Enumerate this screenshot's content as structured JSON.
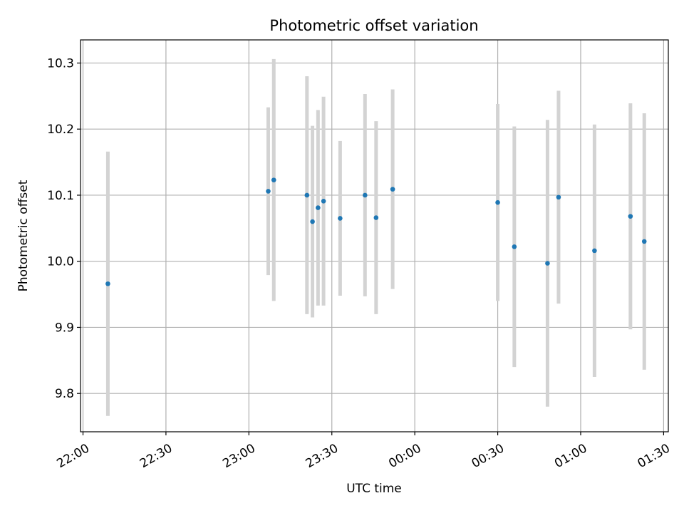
{
  "chart_data": {
    "type": "scatter",
    "title": "Photometric offset variation",
    "xlabel": "UTC time",
    "ylabel": "Photometric offset",
    "x_ticks": [
      "22:00",
      "22:30",
      "23:00",
      "23:30",
      "00:00",
      "00:30",
      "01:00",
      "01:30"
    ],
    "x_tick_values": [
      0,
      30,
      60,
      90,
      120,
      150,
      180,
      210
    ],
    "y_ticks": [
      "9.8",
      "9.9",
      "10.0",
      "10.1",
      "10.2",
      "10.3"
    ],
    "y_tick_values": [
      9.8,
      9.9,
      10.0,
      10.1,
      10.2,
      10.3
    ],
    "xlim": [
      -0.9,
      211.7
    ],
    "ylim": [
      9.742,
      10.335
    ],
    "grid": true,
    "point_color": "#1f77b4",
    "errorbar_color": "#d3d3d3",
    "points": [
      {
        "x": 9.0,
        "y": 9.966,
        "yerr": 0.2
      },
      {
        "x": 67.0,
        "y": 10.106,
        "yerr": 0.127
      },
      {
        "x": 69.0,
        "y": 10.123,
        "yerr": 0.183
      },
      {
        "x": 81.0,
        "y": 10.1,
        "yerr": 0.18
      },
      {
        "x": 83.0,
        "y": 10.06,
        "yerr": 0.145
      },
      {
        "x": 85.0,
        "y": 10.081,
        "yerr": 0.148
      },
      {
        "x": 87.0,
        "y": 10.091,
        "yerr": 0.158
      },
      {
        "x": 93.0,
        "y": 10.065,
        "yerr": 0.117
      },
      {
        "x": 102.0,
        "y": 10.1,
        "yerr": 0.153
      },
      {
        "x": 106.0,
        "y": 10.066,
        "yerr": 0.146
      },
      {
        "x": 112.0,
        "y": 10.109,
        "yerr": 0.151
      },
      {
        "x": 150.0,
        "y": 10.089,
        "yerr": 0.149
      },
      {
        "x": 156.0,
        "y": 10.022,
        "yerr": 0.182
      },
      {
        "x": 168.0,
        "y": 9.997,
        "yerr": 0.217
      },
      {
        "x": 172.0,
        "y": 10.097,
        "yerr": 0.161
      },
      {
        "x": 185.0,
        "y": 10.016,
        "yerr": 0.191
      },
      {
        "x": 198.0,
        "y": 10.068,
        "yerr": 0.171
      },
      {
        "x": 203.0,
        "y": 10.03,
        "yerr": 0.194
      }
    ]
  }
}
